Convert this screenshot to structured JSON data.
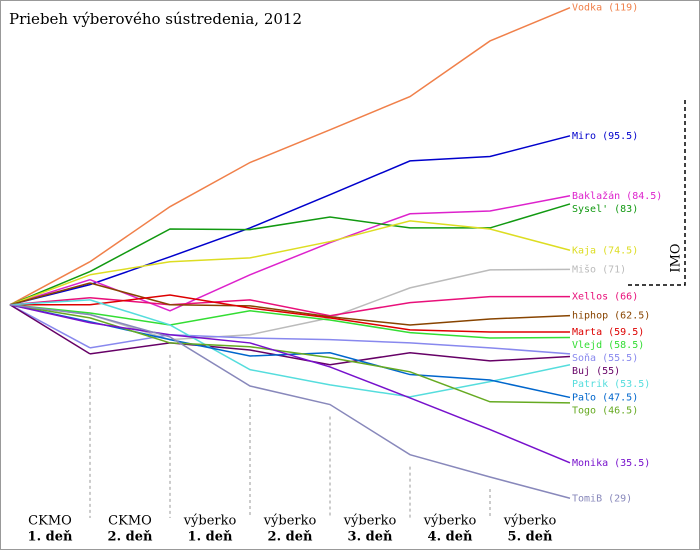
{
  "chart_data": {
    "type": "line",
    "title": "Priebeh výberového sústredenia, 2012",
    "annotation": "IMO",
    "categories": [
      [
        "CKMO",
        "1. deň"
      ],
      [
        "CKMO",
        "2. deň"
      ],
      [
        "výberko",
        "1. deň"
      ],
      [
        "výberko",
        "2. deň"
      ],
      [
        "výberko",
        "3. deň"
      ],
      [
        "výberko",
        "4. deň"
      ],
      [
        "výberko",
        "5. deň"
      ]
    ],
    "ylim": [
      -36,
      55
    ],
    "series": [
      {
        "name": "Vodka (119)",
        "color": "#f0804a",
        "values": [
          7.9,
          18.0,
          26.1,
          32.1,
          38.2,
          48.4,
          54.5
        ]
      },
      {
        "name": "Miro (95.5)",
        "color": "#0000cc",
        "values": [
          3.7,
          8.8,
          14.1,
          20.2,
          26.4,
          27.2,
          31.0
        ]
      },
      {
        "name": "Baklažán (84.5)",
        "color": "#dd22cc",
        "values": [
          4.6,
          -1.1,
          5.5,
          11.4,
          16.7,
          17.2,
          20.0
        ]
      },
      {
        "name": "Sysel' (83)",
        "color": "#119911",
        "values": [
          6.1,
          13.9,
          13.8,
          16.1,
          14.1,
          14.1,
          18.5
        ]
      },
      {
        "name": "Kaja (74.5)",
        "color": "#dddd22",
        "values": [
          5.5,
          7.9,
          8.6,
          11.6,
          15.4,
          13.9,
          10.0
        ]
      },
      {
        "name": "Mišo (71)",
        "color": "#bbbbbb",
        "values": [
          -1.8,
          -6.4,
          -5.5,
          -2.4,
          3.1,
          6.4,
          6.5
        ]
      },
      {
        "name": "Xellos (66)",
        "color": "#e8107a",
        "values": [
          1.3,
          0,
          0.9,
          -2.0,
          0.4,
          1.5,
          1.5
        ]
      },
      {
        "name": "hiphop (62.5)",
        "color": "#884400",
        "values": [
          4.0,
          0,
          -0.2,
          -2.2,
          -3.7,
          -2.6,
          -2.0
        ]
      },
      {
        "name": "Marta (59.5)",
        "color": "#dd0000",
        "values": [
          0,
          1.8,
          -0.6,
          -2.4,
          -4.6,
          -5.0,
          -5.0
        ]
      },
      {
        "name": "Vlejd (58.5)",
        "color": "#33dd33",
        "values": [
          -1.5,
          -3.7,
          -1.1,
          -2.8,
          -5.1,
          -6.1,
          -6.0
        ]
      },
      {
        "name": "Soňa (55.5)",
        "color": "#8888ee",
        "values": [
          -7.9,
          -5.5,
          -6.1,
          -6.4,
          -7.0,
          -7.9,
          -9.0
        ]
      },
      {
        "name": "Buj (55)",
        "color": "#660066",
        "values": [
          -9.0,
          -7.0,
          -8.3,
          -11.0,
          -8.8,
          -10.3,
          -9.5
        ]
      },
      {
        "name": "Patrik (53.5)",
        "color": "#55dddd",
        "values": [
          0.9,
          -3.7,
          -11.9,
          -14.7,
          -16.9,
          -14.1,
          -11.0
        ]
      },
      {
        "name": "Paľo (47.5)",
        "color": "#0066cc",
        "values": [
          -3.1,
          -6.4,
          -9.4,
          -8.8,
          -12.8,
          -13.8,
          -17.0
        ]
      },
      {
        "name": "Togo (46.5)",
        "color": "#66aa22",
        "values": [
          -2.4,
          -7.0,
          -7.7,
          -9.7,
          -12.3,
          -17.8,
          -18.0
        ]
      },
      {
        "name": "Monika (35.5)",
        "color": "#7711cc",
        "values": [
          -3.3,
          -5.5,
          -7.0,
          -11.4,
          -17.1,
          -22.9,
          -29.0
        ]
      },
      {
        "name": "TomiB (29)",
        "color": "#8888bb",
        "values": [
          -1.8,
          -5.9,
          -14.9,
          -18.3,
          -27.5,
          -31.6,
          -35.5
        ]
      }
    ]
  }
}
